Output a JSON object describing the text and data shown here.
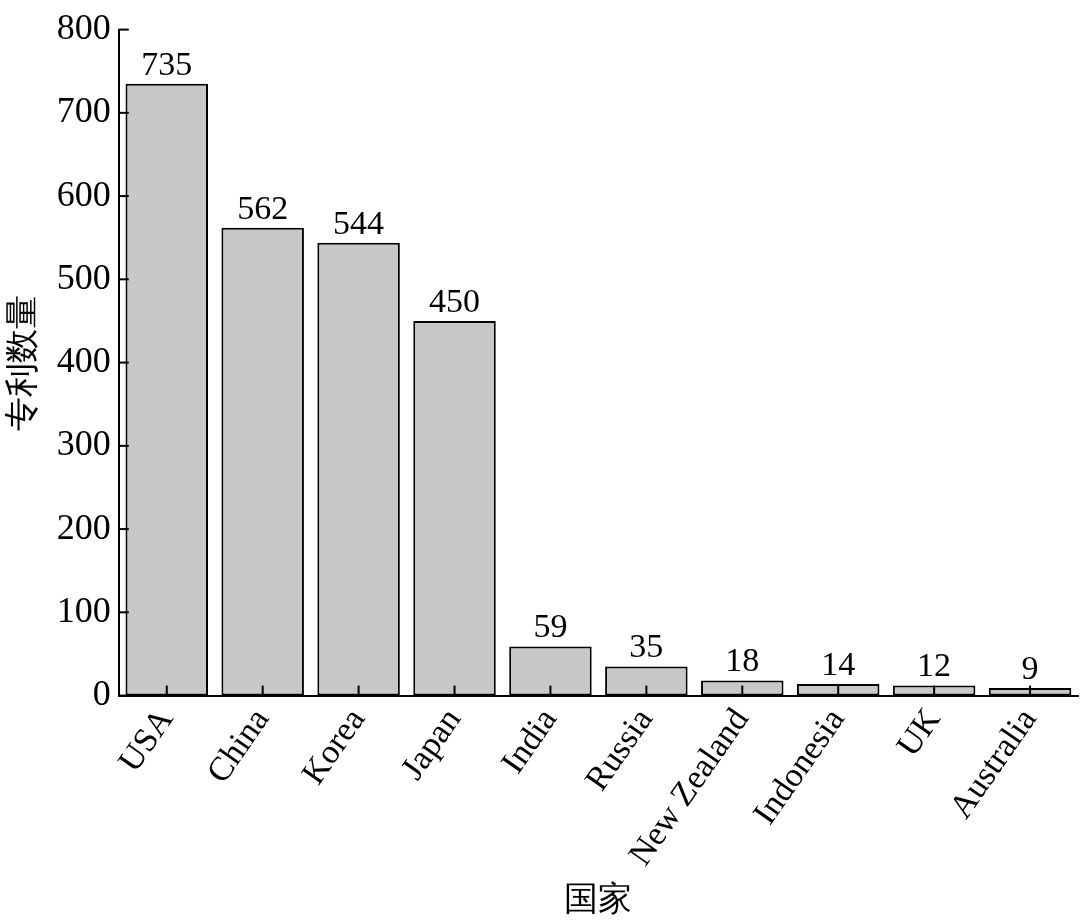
{
  "chart_data": {
    "type": "bar",
    "xlabel": "国家",
    "ylabel": "专利数量",
    "categories": [
      "USA",
      "China",
      "Korea",
      "Japan",
      "India",
      "Russia",
      "New Zealand",
      "Indonesia",
      "UK",
      "Australia"
    ],
    "values": [
      735,
      562,
      544,
      450,
      59,
      35,
      18,
      14,
      12,
      9
    ],
    "color": "#c8c8c8",
    "ylim": [
      0,
      800
    ],
    "yticks": [
      0,
      100,
      200,
      300,
      400,
      500,
      600,
      700,
      800
    ],
    "grid": false,
    "legend": false,
    "data_labels": true
  }
}
